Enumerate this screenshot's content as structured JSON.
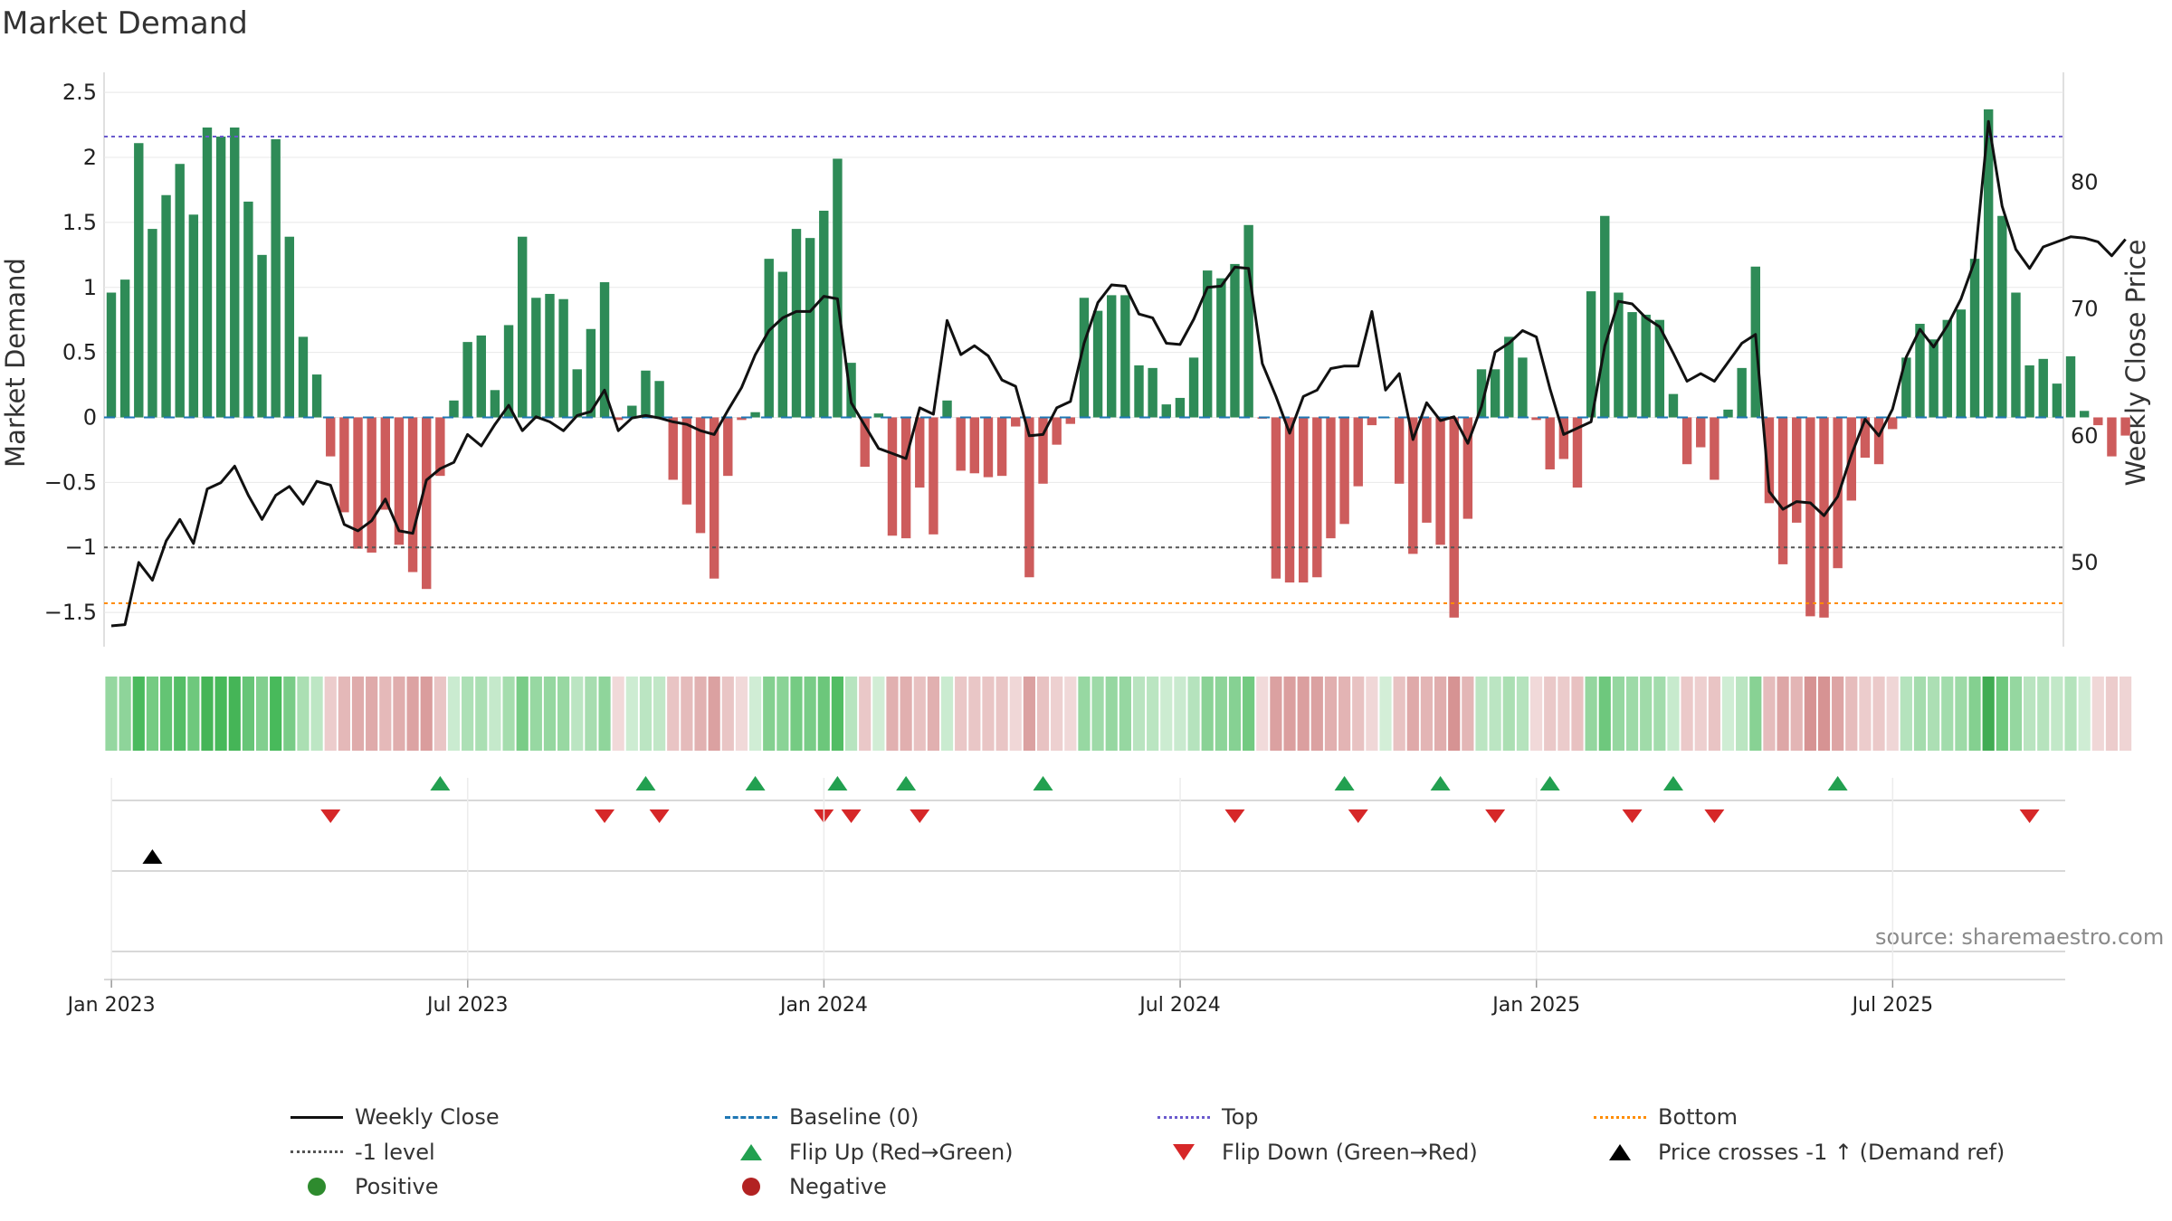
{
  "title": "Market Demand",
  "source": "source: sharemaestro.com",
  "chart_data": {
    "type": "bar",
    "title": "Market Demand",
    "ylabel": "Market Demand",
    "y2label": "Weekly Close Price",
    "ylim": [
      -1.75,
      2.55
    ],
    "y2lim": [
      43.5,
      87.6
    ],
    "yticks": [
      2.5,
      2,
      1.5,
      1,
      0.5,
      0,
      -0.5,
      -1,
      -1.5
    ],
    "ytick_labels": [
      "2.5",
      "2",
      "1.5",
      "1",
      "0.5",
      "0",
      "−0.5",
      "−1",
      "−1.5"
    ],
    "y2ticks": [
      80,
      70,
      60,
      50
    ],
    "y2tick_labels": [
      "80",
      "70",
      "60",
      "50"
    ],
    "x_start": "2022-12-26",
    "xticks": [
      "Jan 2023",
      "Jul 2023",
      "Jan 2024",
      "Jul 2024",
      "Jan 2025",
      "Jul 2025"
    ],
    "xtick_weeks": [
      1,
      27,
      53,
      79,
      105,
      131
    ],
    "reference_lines": {
      "top": 2.16,
      "minus_one": -1,
      "bottom": -1.43,
      "baseline": 0
    },
    "demand": [
      0.96,
      1.06,
      2.11,
      1.45,
      1.71,
      1.95,
      1.56,
      2.23,
      2.16,
      2.23,
      1.66,
      1.25,
      2.14,
      1.39,
      0.62,
      0.33,
      -0.3,
      -0.73,
      -1.01,
      -1.04,
      -0.71,
      -0.98,
      -1.19,
      -1.32,
      -0.45,
      0.13,
      0.58,
      0.63,
      0.21,
      0.71,
      1.39,
      0.92,
      0.95,
      0.91,
      0.37,
      0.68,
      1.04,
      -0.02,
      0.09,
      0.36,
      0.28,
      -0.48,
      -0.67,
      -0.89,
      -1.24,
      -0.45,
      -0.02,
      0.04,
      1.22,
      1.12,
      1.45,
      1.38,
      1.59,
      1.99,
      0.42,
      -0.38,
      0.03,
      -0.91,
      -0.93,
      -0.54,
      -0.9,
      0.13,
      -0.41,
      -0.43,
      -0.46,
      -0.45,
      -0.07,
      -1.23,
      -0.51,
      -0.21,
      -0.05,
      0.92,
      0.82,
      0.94,
      0.94,
      0.4,
      0.38,
      0.1,
      0.15,
      0.46,
      1.13,
      1.07,
      1.18,
      1.48,
      -0.01,
      -1.24,
      -1.27,
      -1.27,
      -1.23,
      -0.93,
      -0.82,
      -0.53,
      -0.06,
      0.0,
      -0.51,
      -1.05,
      -0.81,
      -0.98,
      -1.54,
      -0.78,
      0.37,
      0.37,
      0.62,
      0.46,
      -0.02,
      -0.4,
      -0.32,
      -0.54,
      0.97,
      1.55,
      0.96,
      0.81,
      0.79,
      0.75,
      0.18,
      -0.36,
      -0.23,
      -0.48,
      0.06,
      0.38,
      1.16,
      -0.66,
      -1.13,
      -0.81,
      -1.53,
      -1.54,
      -1.16,
      -0.64,
      -0.31,
      -0.36,
      -0.09,
      0.46,
      0.72,
      0.6,
      0.75,
      0.83,
      1.22,
      2.37,
      1.55,
      0.96,
      0.4,
      0.45,
      0.26,
      0.47,
      0.05,
      -0.06,
      -0.3,
      -0.14
    ],
    "weekly_close": [
      45,
      45.1,
      50,
      48.6,
      51.7,
      53.4,
      51.5,
      55.8,
      56.3,
      57.6,
      55.3,
      53.4,
      55.3,
      56,
      54.6,
      56.4,
      56.1,
      53,
      52.5,
      53.3,
      55,
      52.5,
      52.3,
      56.5,
      57.4,
      57.9,
      60.1,
      59.2,
      60.9,
      62.4,
      60.4,
      61.5,
      61.1,
      60.4,
      61.6,
      61.9,
      63.6,
      60.4,
      61.4,
      61.6,
      61.4,
      61.1,
      60.9,
      60.4,
      60.1,
      62,
      63.8,
      66.4,
      68.3,
      69.3,
      69.8,
      69.8,
      71,
      70.8,
      62.6,
      60.8,
      59,
      58.6,
      58.2,
      62.2,
      61.7,
      69.1,
      66.4,
      67.1,
      66.3,
      64.4,
      63.9,
      60,
      60.1,
      62.2,
      62.7,
      67.3,
      70.5,
      71.9,
      71.8,
      69.6,
      69.3,
      67.3,
      67.2,
      69.2,
      71.7,
      71.8,
      73.3,
      73.2,
      65.7,
      63.1,
      60.2,
      63.1,
      63.6,
      65.3,
      65.5,
      65.5,
      69.8,
      63.6,
      64.9,
      59.7,
      62.6,
      61.2,
      61.5,
      59.4,
      62.3,
      66.6,
      67.3,
      68.3,
      67.8,
      63.7,
      60.1,
      60.6,
      61.1,
      67.1,
      70.6,
      70.4,
      69.3,
      68.6,
      66.5,
      64.3,
      64.9,
      64.3,
      65.8,
      67.3,
      68,
      55.6,
      54.2,
      54.8,
      54.7,
      53.7,
      55.2,
      58.5,
      61.3,
      60,
      62.1,
      66.2,
      68.4,
      67,
      68.7,
      70.8,
      73.8,
      84.8,
      78.1,
      74.7,
      73.2,
      74.9,
      75.3,
      75.7,
      75.6,
      75.3,
      74.2,
      75.5
    ],
    "series": [
      {
        "name": "Weekly Close",
        "axis": "right",
        "kind": "line"
      },
      {
        "name": "Market Demand",
        "axis": "left",
        "kind": "bar"
      }
    ],
    "flip_up_weeks": [
      24,
      39,
      47,
      53,
      58,
      68,
      90,
      97,
      105,
      114,
      126
    ],
    "flip_down_weeks": [
      16,
      36,
      40,
      52,
      54,
      59,
      82,
      91,
      101,
      111,
      117,
      140
    ],
    "price_cross_weeks": [
      3
    ],
    "legend": [
      {
        "label": "Weekly Close",
        "color": "#111111",
        "kind": "line"
      },
      {
        "label": "Baseline (0)",
        "color": "#1f77b4",
        "kind": "dash"
      },
      {
        "label": "Top",
        "color": "#6a5acd",
        "kind": "dot"
      },
      {
        "label": "Bottom",
        "color": "#ff8c00",
        "kind": "dot"
      },
      {
        "label": "-1 level",
        "color": "#555555",
        "kind": "dot"
      },
      {
        "label": "Flip Up (Red→Green)",
        "color": "#22a050",
        "kind": "tri-up"
      },
      {
        "label": "Flip Down (Green→Red)",
        "color": "#d62728",
        "kind": "tri-down"
      },
      {
        "label": "Price crosses -1 ↑ (Demand ref)",
        "color": "#000000",
        "kind": "tri-up"
      },
      {
        "label": "Positive",
        "color": "#2e8b2e",
        "kind": "dot-marker"
      },
      {
        "label": "Negative",
        "color": "#b22222",
        "kind": "dot-marker"
      }
    ]
  }
}
